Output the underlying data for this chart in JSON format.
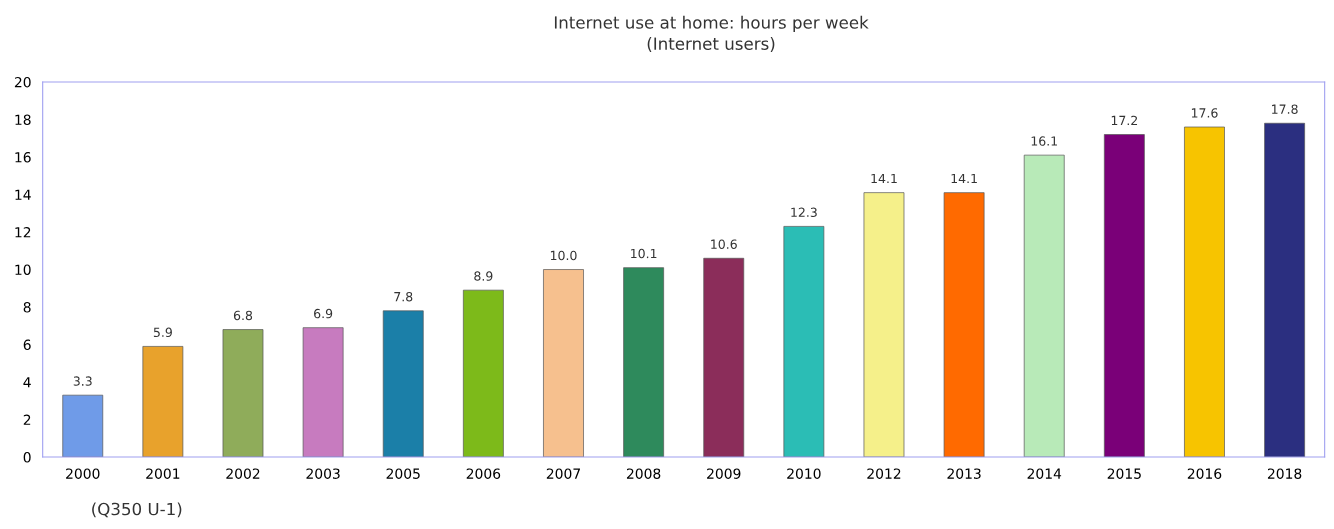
{
  "chart_data": {
    "type": "bar",
    "title": "Internet use at home: hours per week\n(Internet users)",
    "categories": [
      "2000",
      "2001",
      "2002",
      "2003",
      "2005",
      "2006",
      "2007",
      "2008",
      "2009",
      "2010",
      "2012",
      "2013",
      "2014",
      "2015",
      "2016",
      "2018"
    ],
    "values": [
      3.3,
      5.9,
      6.8,
      6.9,
      7.8,
      8.9,
      10.0,
      10.1,
      10.6,
      12.3,
      14.1,
      14.1,
      16.1,
      17.2,
      17.6,
      17.8
    ],
    "value_labels": [
      "3.3",
      "5.9",
      "6.8",
      "6.9",
      "7.8",
      "8.9",
      "10.0",
      "10.1",
      "10.6",
      "12.3",
      "14.1",
      "14.1",
      "16.1",
      "17.2",
      "17.6",
      "17.8"
    ],
    "colors": [
      "#6f9be8",
      "#e8a22c",
      "#8fac5a",
      "#c77bbf",
      "#1b7fa8",
      "#7dba1a",
      "#f6c08e",
      "#2e8a5c",
      "#8b2d5a",
      "#2bbdb5",
      "#f5f08a",
      "#ff6a00",
      "#b8eab8",
      "#7a0078",
      "#f7c400",
      "#2b2f80"
    ],
    "ylim": [
      0,
      20
    ],
    "yticks": [
      0,
      2,
      4,
      6,
      8,
      10,
      12,
      14,
      16,
      18,
      20
    ],
    "grid": false,
    "legend": false,
    "annotations": [
      "(Q350 U-1)"
    ]
  }
}
